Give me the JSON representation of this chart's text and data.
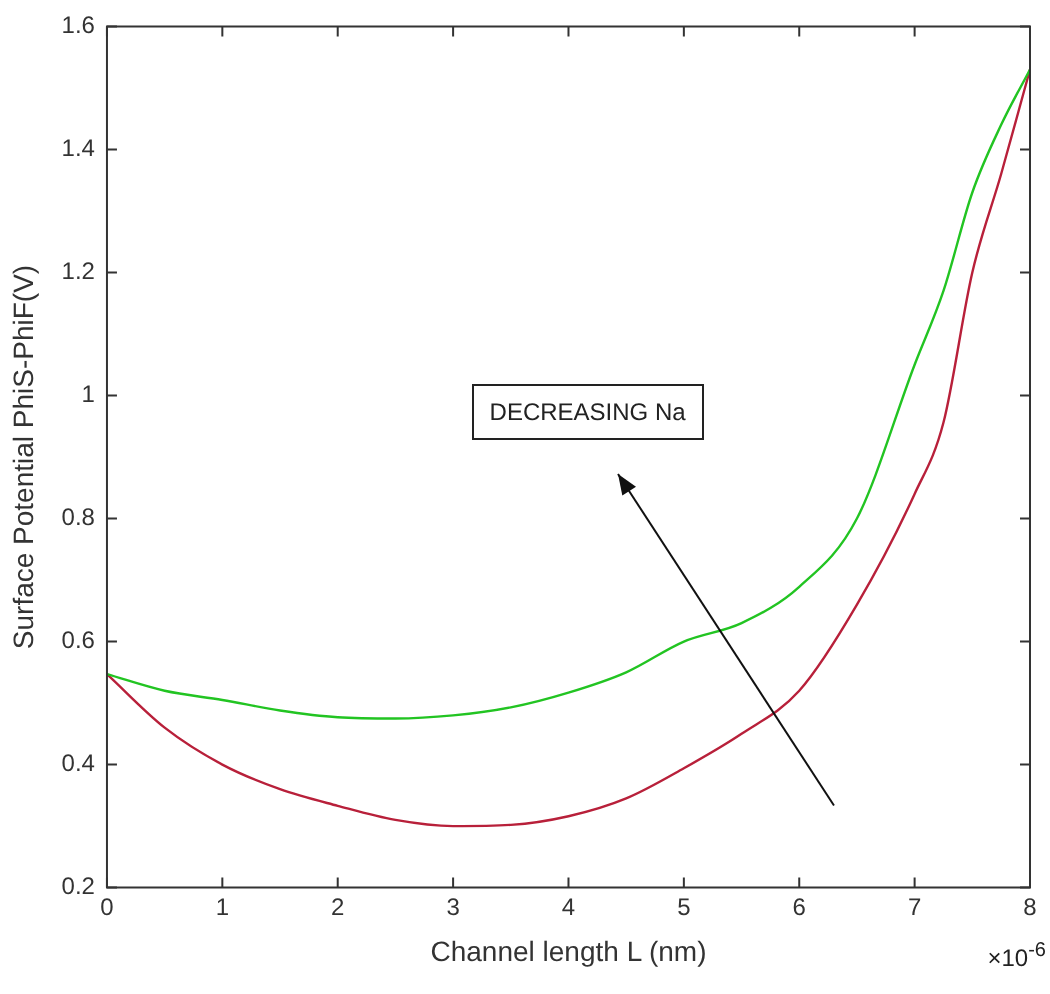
{
  "chart_data": {
    "type": "line",
    "xlabel": "Channel length L (nm)",
    "ylabel": "Surface Potential PhiS-PhiF(V)",
    "xlim": [
      0,
      8
    ],
    "ylim": [
      0.2,
      1.6
    ],
    "xticks": [
      0,
      1,
      2,
      3,
      4,
      5,
      6,
      7,
      8
    ],
    "yticks": [
      0.2,
      0.4,
      0.6,
      0.8,
      {
        "value": 1,
        "label": "1"
      },
      1.2,
      1.4,
      1.6
    ],
    "grid": false,
    "legend": false,
    "marker": "none",
    "line_style": "solid",
    "x": [
      0,
      0.5,
      1,
      1.5,
      2,
      2.5,
      3,
      3.5,
      4,
      4.5,
      5,
      5.5,
      6,
      6.5,
      7,
      7.25,
      7.5,
      7.75,
      8
    ],
    "series": [
      {
        "color": "#22c422",
        "values": [
          0.547,
          0.52,
          0.505,
          0.488,
          0.477,
          0.475,
          0.48,
          0.493,
          0.517,
          0.55,
          0.6,
          0.63,
          0.689,
          0.8,
          1.05,
          1.17,
          1.33,
          1.44,
          1.53
        ]
      },
      {
        "color": "#b8203a",
        "values": [
          0.547,
          0.46,
          0.4,
          0.36,
          0.333,
          0.31,
          0.3,
          0.302,
          0.316,
          0.345,
          0.394,
          0.45,
          0.52,
          0.66,
          0.84,
          0.956,
          1.2,
          1.36,
          1.53
        ]
      }
    ],
    "annotations": [
      "DECREASING Na",
      "×10$^{-6}$"
    ]
  }
}
